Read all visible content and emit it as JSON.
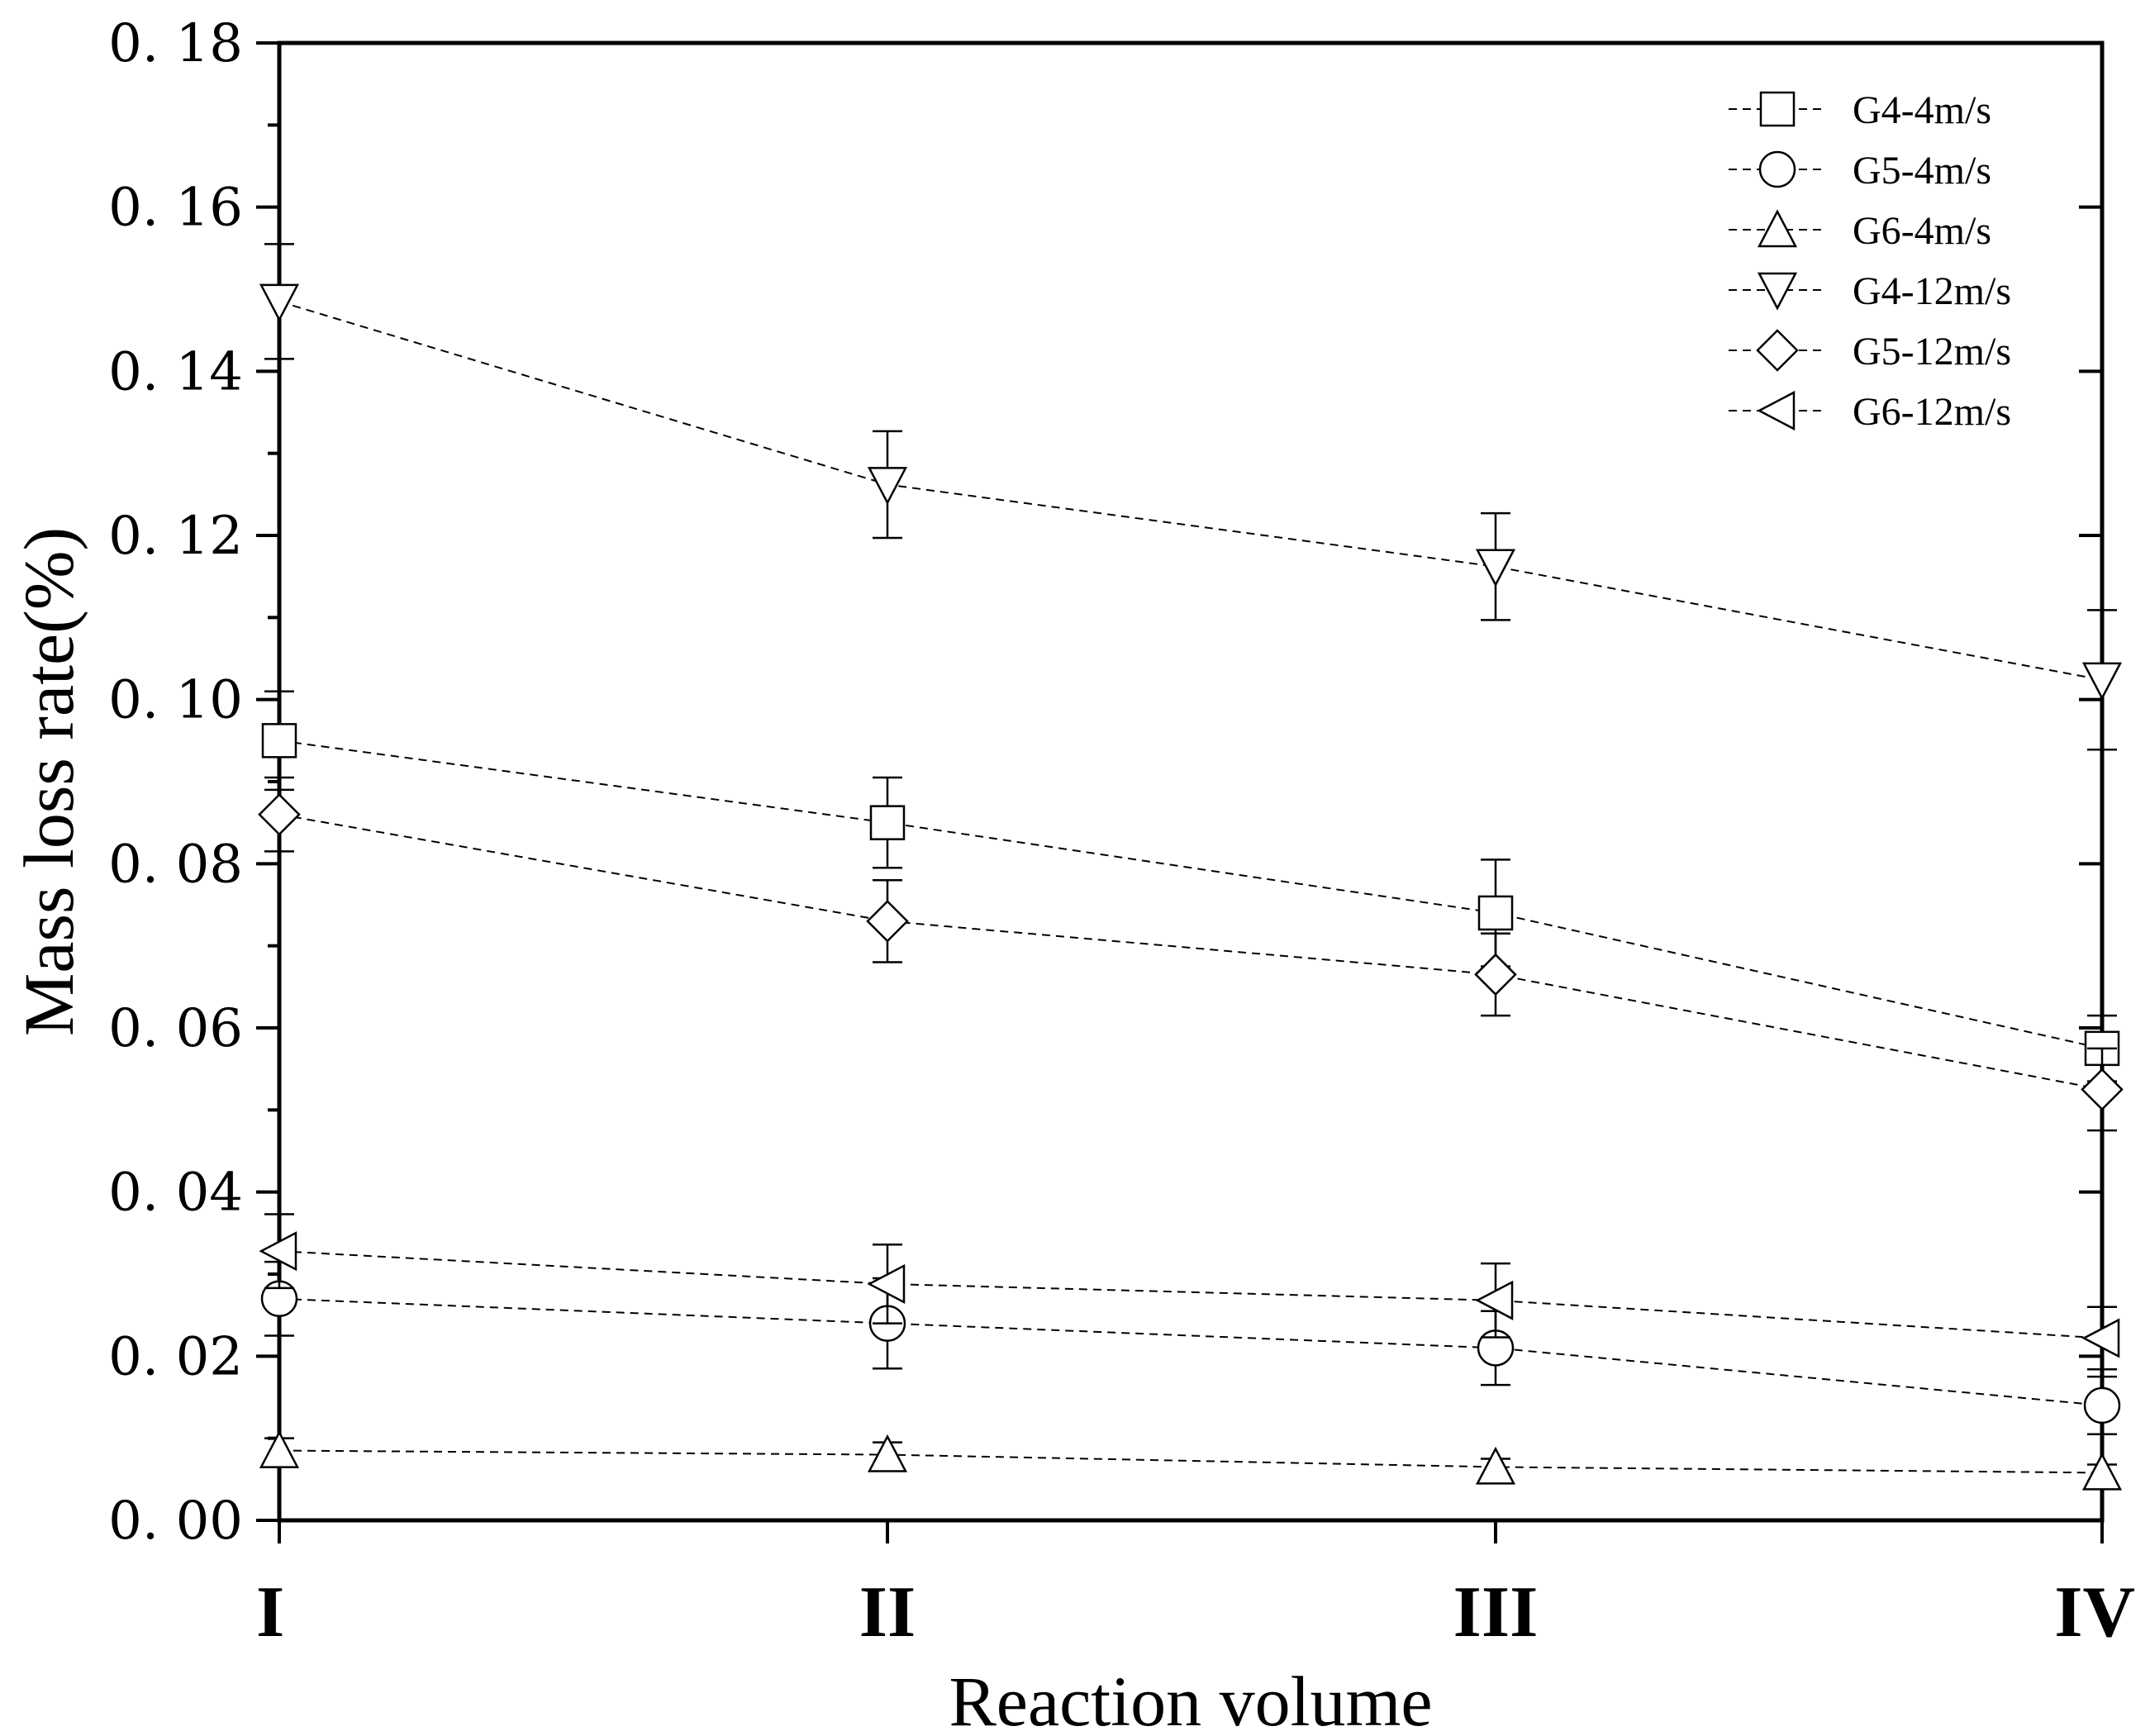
{
  "chart_data": {
    "type": "line",
    "xlabel": "Reaction volume",
    "ylabel": "Mass loss rate(%)",
    "categories": [
      "I",
      "II",
      "III",
      "IV"
    ],
    "ylim": [
      0,
      0.18
    ],
    "yticks": [
      0.0,
      0.02,
      0.04,
      0.06,
      0.08,
      0.1,
      0.12,
      0.14,
      0.16,
      0.18
    ],
    "ytick_labels": [
      "0. 00",
      "0. 02",
      "0. 04",
      "0. 06",
      "0. 08",
      "0. 10",
      "0. 12",
      "0. 14",
      "0. 16",
      "0. 18"
    ],
    "legend_position": "top-right",
    "series": [
      {
        "name": "G4-4m/s",
        "marker": "square",
        "values": [
          0.095,
          0.085,
          0.074,
          0.0575
        ],
        "errors": [
          0.006,
          0.0055,
          0.0065,
          0.004
        ]
      },
      {
        "name": "G5-4m/s",
        "marker": "circle",
        "values": [
          0.027,
          0.024,
          0.021,
          0.014
        ],
        "errors": [
          0.0045,
          0.0055,
          0.0045,
          0.0035
        ]
      },
      {
        "name": "G6-4m/s",
        "marker": "triangle-up",
        "values": [
          0.0085,
          0.008,
          0.0065,
          0.0058
        ],
        "errors": [
          0.0015,
          0.0015,
          0.001,
          0.001
        ]
      },
      {
        "name": "G4-12m/s",
        "marker": "triangle-down",
        "values": [
          0.1485,
          0.1262,
          0.1162,
          0.1024
        ],
        "errors": [
          0.007,
          0.0065,
          0.0065,
          0.0085
        ]
      },
      {
        "name": "G5-12m/s",
        "marker": "diamond",
        "values": [
          0.086,
          0.073,
          0.0665,
          0.0525
        ],
        "errors": [
          0.0045,
          0.005,
          0.005,
          0.005
        ]
      },
      {
        "name": "G6-12m/s",
        "marker": "triangle-left",
        "values": [
          0.0328,
          0.0288,
          0.0268,
          0.0222
        ],
        "errors": [
          0.0045,
          0.0048,
          0.0045,
          0.0038
        ]
      }
    ]
  }
}
